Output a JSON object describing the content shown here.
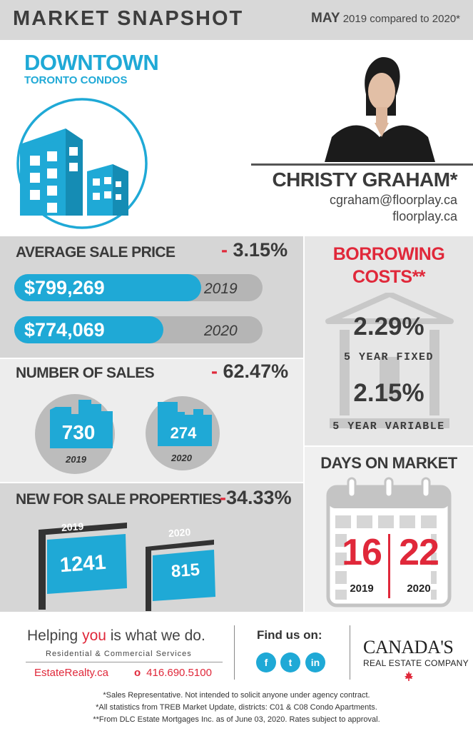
{
  "header": {
    "title": "MARKET SNAPSHOT",
    "month": "MAY",
    "compare": "2019 compared to 2020*"
  },
  "location": {
    "name": "DOWNTOWN",
    "sub": "TORONTO CONDOS"
  },
  "agent": {
    "name": "CHRISTY GRAHAM*",
    "email": "cgraham@floorplay.ca",
    "website": "floorplay.ca"
  },
  "avg_price": {
    "label": "AVERAGE SALE PRICE",
    "sign": "-",
    "change": "3.15%",
    "y2019": {
      "value": "$799,269",
      "year": "2019",
      "fill": 0.74
    },
    "y2020": {
      "value": "$774,069",
      "year": "2020",
      "fill": 0.6
    }
  },
  "sales": {
    "label": "NUMBER OF SALES",
    "sign": "-",
    "change": "62.47%",
    "y2019": {
      "value": "730",
      "year": "2019"
    },
    "y2020": {
      "value": "274",
      "year": "2020"
    }
  },
  "new_listings": {
    "label": "NEW FOR SALE PROPERTIES",
    "sign": "-",
    "change": "34.33%",
    "y2019": {
      "value": "1241",
      "year": "2019"
    },
    "y2020": {
      "value": "815",
      "year": "2020"
    }
  },
  "borrowing": {
    "title_line1": "BORROWING",
    "title_line2": "COSTS**",
    "fixed": {
      "rate": "2.29%",
      "label": "5 YEAR FIXED"
    },
    "variable": {
      "rate": "2.15%",
      "label": "5 YEAR VARIABLE"
    }
  },
  "days_on_market": {
    "label": "DAYS ON MARKET",
    "y2019": {
      "value": "16",
      "year": "2019"
    },
    "y2020": {
      "value": "22",
      "year": "2020"
    }
  },
  "footer": {
    "slogan_pre": "Helping ",
    "slogan_you": "you",
    "slogan_post": " is what we do.",
    "services": "Residential & Commercial Services",
    "site": "EstateRealty.ca",
    "phone": "416.690.5100",
    "find_us": "Find us on:",
    "social": [
      "f",
      "t",
      "in"
    ],
    "brand_line1": "CANADA'S",
    "brand_line2": "REAL ESTATE COMPANY",
    "note1": "*Sales Representative. Not intended to solicit anyone under agency contract.",
    "note2": "*All statistics from TREB Market Update, districts: C01 & C08 Condo Apartments.",
    "note3": "**From DLC Estate Mortgages Inc. as of June 03, 2020. Rates subject to approval."
  },
  "colors": {
    "accent": "#1fa9d6",
    "negative": "#e0283a",
    "panel_grey": "#d6d6d6"
  }
}
